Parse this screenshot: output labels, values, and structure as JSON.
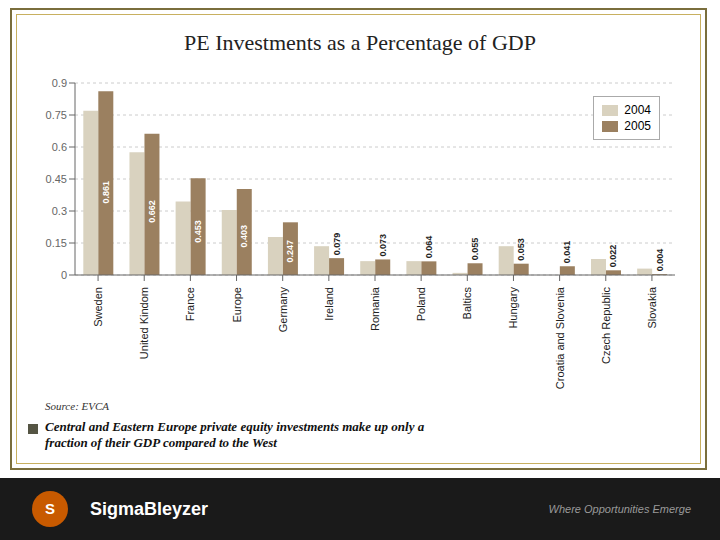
{
  "chart_data": {
    "type": "bar",
    "title": "PE Investments as a Percentage of GDP",
    "categories": [
      "Sweden",
      "United Kindom",
      "France",
      "Europe",
      "Germany",
      "Ireland",
      "Romania",
      "Poland",
      "Baltics",
      "Hungary",
      "Croatia and Slovenia",
      "Czech Republic",
      "Slovakia"
    ],
    "series": [
      {
        "name": "2004",
        "color": "#d9d2bf",
        "values": [
          0.77,
          0.575,
          0.345,
          0.305,
          0.178,
          0.135,
          0.065,
          0.065,
          0.01,
          0.135,
          0.0,
          0.075,
          0.03
        ]
      },
      {
        "name": "2005",
        "color": "#9b8060",
        "values": [
          0.861,
          0.662,
          0.453,
          0.403,
          0.247,
          0.079,
          0.073,
          0.064,
          0.055,
          0.053,
          0.041,
          0.022,
          0.004
        ],
        "data_labels": true
      }
    ],
    "ylim": [
      0,
      0.9
    ],
    "yticks": [
      0,
      0.15,
      0.3,
      0.45,
      0.6,
      0.75,
      0.9
    ],
    "grid": true,
    "legend": "upper right",
    "annotations": [
      "Source: EVCA",
      "Central and Eastern Europe private equity investments make up only a\nfraction of their GDP compared to the West",
      "S",
      "SigmaBleyzer",
      "Where Opportunities Emerge"
    ]
  }
}
